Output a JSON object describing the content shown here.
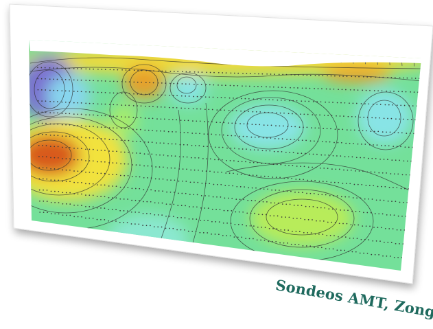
{
  "figure": {
    "caption": "Sondeos AMT, Zonge GDP",
    "type": "resistivity-section",
    "colors": {
      "caption": "#1f6a5e",
      "frame": "#ffffff",
      "contour_line": "#2e2e2e",
      "station_dot": "#3a3a3a",
      "low_resistivity": "#7a6fd0",
      "high_resistivity": "#d85a1c",
      "background_field": "#74e09a"
    },
    "anomalies": [
      {
        "label": "conductive-west",
        "color": "#7a6fd0"
      },
      {
        "label": "resistive-west",
        "color": "#d85a1c"
      },
      {
        "label": "resistive-upper",
        "color": "#e6a02a"
      },
      {
        "label": "conductive-center",
        "color": "#88e4e6"
      },
      {
        "label": "conductive-east",
        "color": "#88e4e6"
      },
      {
        "label": "resistive-basin",
        "color": "#b8ec5a"
      }
    ],
    "station_count": 32,
    "depth_rows": 14
  }
}
